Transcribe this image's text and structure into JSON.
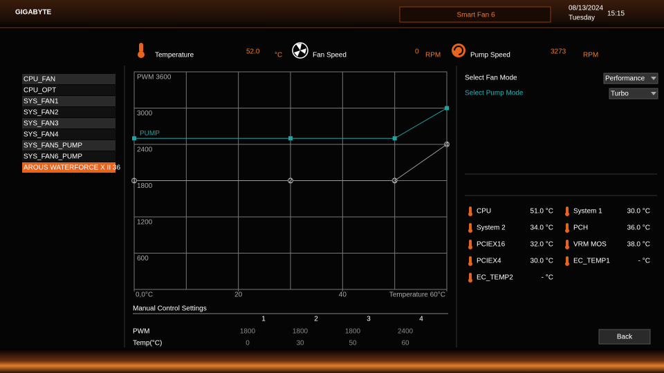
{
  "header": {
    "brand": "GIGABYTE",
    "title": "Smart Fan 6",
    "date": "08/13/2024",
    "day": "Tuesday",
    "time": "15:15"
  },
  "readings": [
    {
      "label": "Temperature",
      "value": "52.0",
      "unit": "°C"
    },
    {
      "label": "Fan Speed",
      "value": "0",
      "unit": "RPM"
    },
    {
      "label": "Pump Speed",
      "value": "3273",
      "unit": "RPM"
    }
  ],
  "fans": [
    "CPU_FAN",
    "CPU_OPT",
    "SYS_FAN1",
    "SYS_FAN2",
    "SYS_FAN3",
    "SYS_FAN4",
    "SYS_FAN5_PUMP",
    "SYS_FAN6_PUMP",
    "AROUS WATERFORCE X II 36"
  ],
  "modes": [
    {
      "label": "Select Fan Mode",
      "value": "Performance"
    },
    {
      "label": "Select Pump Mode",
      "value": "Turbo"
    }
  ],
  "sensors": [
    {
      "name": "CPU",
      "value": "51.0 °C"
    },
    {
      "name": "System 1",
      "value": "30.0 °C"
    },
    {
      "name": "System 2",
      "value": "34.0 °C"
    },
    {
      "name": "PCH",
      "value": "36.0 °C"
    },
    {
      "name": "PCIEX16",
      "value": "32.0 °C"
    },
    {
      "name": "VRM MOS",
      "value": "38.0 °C"
    },
    {
      "name": "PCIEX4",
      "value": "30.0 °C"
    },
    {
      "name": "EC_TEMP1",
      "value": "- °C"
    },
    {
      "name": "EC_TEMP2",
      "value": "- °C"
    }
  ],
  "manual": {
    "title": "Manual Control Settings",
    "columns": [
      "1",
      "2",
      "3",
      "4"
    ],
    "rows": [
      {
        "label": "PWM",
        "values": [
          "1800",
          "1800",
          "1800",
          "2400"
        ]
      },
      {
        "label": "Temp(°C)",
        "values": [
          "0",
          "30",
          "50",
          "60"
        ]
      }
    ]
  },
  "back": "Back",
  "chart_data": {
    "type": "line",
    "x": [
      0,
      30,
      50,
      60
    ],
    "xlim": [
      0,
      60
    ],
    "xticks": [
      {
        "value": 0,
        "label": "0,0°C"
      },
      20,
      40,
      {
        "value": 60,
        "label": "Temperature 60°C"
      }
    ],
    "ylim": [
      0,
      3600
    ],
    "yticks": [
      {
        "value": 3600,
        "label": "PWM 3600"
      },
      3000,
      2400,
      1800,
      1200,
      600
    ],
    "grid": true,
    "point_labels": [
      "1",
      "2",
      "3",
      "4"
    ],
    "series": [
      {
        "name": "PUMP",
        "color": "#1fa3a3",
        "values": [
          2500,
          2500,
          2500,
          3000
        ]
      },
      {
        "color": "#9a9a9a",
        "values": [
          1800,
          1800,
          1800,
          2400
        ]
      }
    ]
  }
}
